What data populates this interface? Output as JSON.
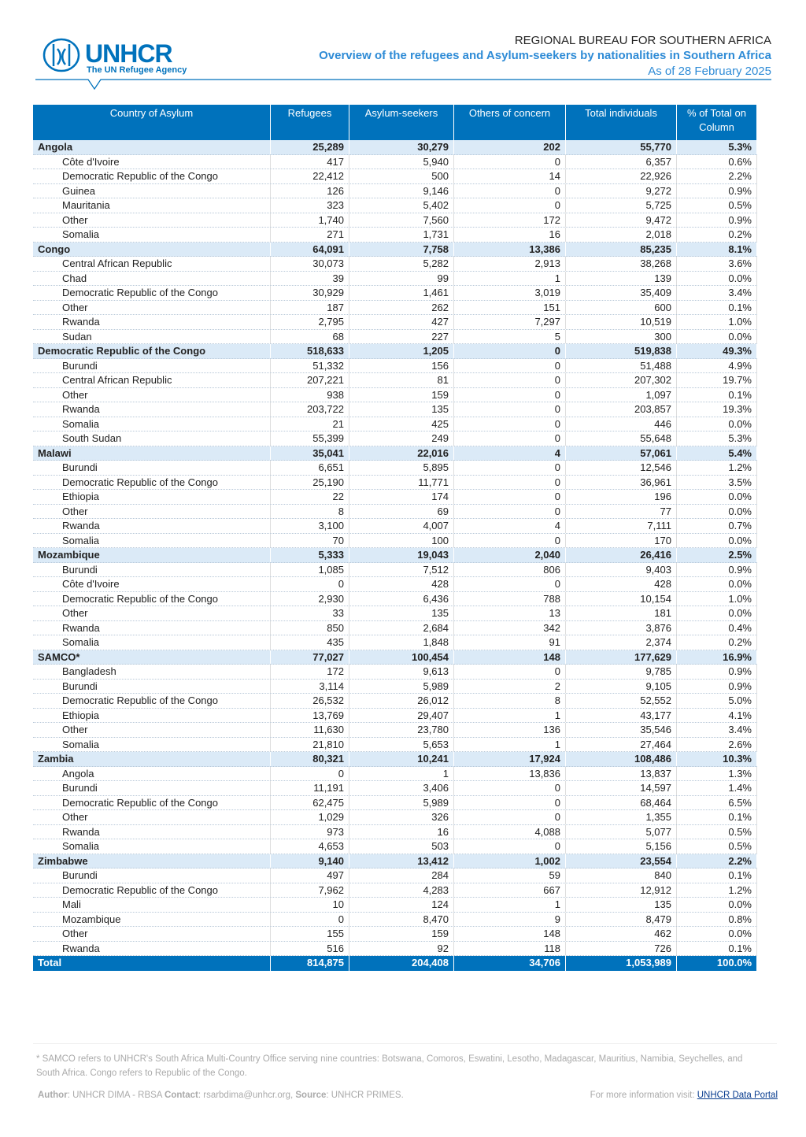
{
  "header": {
    "logo_text": "UNHCR",
    "logo_tagline": "The UN Refugee Agency",
    "bureau": "REGIONAL BUREAU FOR SOUTHERN AFRICA",
    "title": "Overview of the refugees and Asylum-seekers by nationalities in Southern Africa",
    "date": "As of 28 February 2025"
  },
  "table": {
    "columns": [
      "Country of Asylum",
      "Refugees",
      "Asylum-seekers",
      "Others of concern",
      "Total individuals",
      "% of Total on Column"
    ],
    "groups": [
      {
        "row": [
          "Angola",
          "25,289",
          "30,279",
          "202",
          "55,770",
          "5.3%"
        ],
        "rows": [
          [
            "Côte d'Ivoire",
            "417",
            "5,940",
            "0",
            "6,357",
            "0.6%"
          ],
          [
            "Democratic Republic of the Congo",
            "22,412",
            "500",
            "14",
            "22,926",
            "2.2%"
          ],
          [
            "Guinea",
            "126",
            "9,146",
            "0",
            "9,272",
            "0.9%"
          ],
          [
            "Mauritania",
            "323",
            "5,402",
            "0",
            "5,725",
            "0.5%"
          ],
          [
            "Other",
            "1,740",
            "7,560",
            "172",
            "9,472",
            "0.9%"
          ],
          [
            "Somalia",
            "271",
            "1,731",
            "16",
            "2,018",
            "0.2%"
          ]
        ]
      },
      {
        "row": [
          "Congo",
          "64,091",
          "7,758",
          "13,386",
          "85,235",
          "8.1%"
        ],
        "rows": [
          [
            "Central African Republic",
            "30,073",
            "5,282",
            "2,913",
            "38,268",
            "3.6%"
          ],
          [
            "Chad",
            "39",
            "99",
            "1",
            "139",
            "0.0%"
          ],
          [
            "Democratic Republic of the Congo",
            "30,929",
            "1,461",
            "3,019",
            "35,409",
            "3.4%"
          ],
          [
            "Other",
            "187",
            "262",
            "151",
            "600",
            "0.1%"
          ],
          [
            "Rwanda",
            "2,795",
            "427",
            "7,297",
            "10,519",
            "1.0%"
          ],
          [
            "Sudan",
            "68",
            "227",
            "5",
            "300",
            "0.0%"
          ]
        ]
      },
      {
        "row": [
          "Democratic Republic of the Congo",
          "518,633",
          "1,205",
          "0",
          "519,838",
          "49.3%"
        ],
        "rows": [
          [
            "Burundi",
            "51,332",
            "156",
            "0",
            "51,488",
            "4.9%"
          ],
          [
            "Central African Republic",
            "207,221",
            "81",
            "0",
            "207,302",
            "19.7%"
          ],
          [
            "Other",
            "938",
            "159",
            "0",
            "1,097",
            "0.1%"
          ],
          [
            "Rwanda",
            "203,722",
            "135",
            "0",
            "203,857",
            "19.3%"
          ],
          [
            "Somalia",
            "21",
            "425",
            "0",
            "446",
            "0.0%"
          ],
          [
            "South Sudan",
            "55,399",
            "249",
            "0",
            "55,648",
            "5.3%"
          ]
        ]
      },
      {
        "row": [
          "Malawi",
          "35,041",
          "22,016",
          "4",
          "57,061",
          "5.4%"
        ],
        "rows": [
          [
            "Burundi",
            "6,651",
            "5,895",
            "0",
            "12,546",
            "1.2%"
          ],
          [
            "Democratic Republic of the Congo",
            "25,190",
            "11,771",
            "0",
            "36,961",
            "3.5%"
          ],
          [
            "Ethiopia",
            "22",
            "174",
            "0",
            "196",
            "0.0%"
          ],
          [
            "Other",
            "8",
            "69",
            "0",
            "77",
            "0.0%"
          ],
          [
            "Rwanda",
            "3,100",
            "4,007",
            "4",
            "7,111",
            "0.7%"
          ],
          [
            "Somalia",
            "70",
            "100",
            "0",
            "170",
            "0.0%"
          ]
        ]
      },
      {
        "row": [
          "Mozambique",
          "5,333",
          "19,043",
          "2,040",
          "26,416",
          "2.5%"
        ],
        "rows": [
          [
            "Burundi",
            "1,085",
            "7,512",
            "806",
            "9,403",
            "0.9%"
          ],
          [
            "Côte d'Ivoire",
            "0",
            "428",
            "0",
            "428",
            "0.0%"
          ],
          [
            "Democratic Republic of the Congo",
            "2,930",
            "6,436",
            "788",
            "10,154",
            "1.0%"
          ],
          [
            "Other",
            "33",
            "135",
            "13",
            "181",
            "0.0%"
          ],
          [
            "Rwanda",
            "850",
            "2,684",
            "342",
            "3,876",
            "0.4%"
          ],
          [
            "Somalia",
            "435",
            "1,848",
            "91",
            "2,374",
            "0.2%"
          ]
        ]
      },
      {
        "row": [
          "SAMCO*",
          "77,027",
          "100,454",
          "148",
          "177,629",
          "16.9%"
        ],
        "rows": [
          [
            "Bangladesh",
            "172",
            "9,613",
            "0",
            "9,785",
            "0.9%"
          ],
          [
            "Burundi",
            "3,114",
            "5,989",
            "2",
            "9,105",
            "0.9%"
          ],
          [
            "Democratic Republic of the Congo",
            "26,532",
            "26,012",
            "8",
            "52,552",
            "5.0%"
          ],
          [
            "Ethiopia",
            "13,769",
            "29,407",
            "1",
            "43,177",
            "4.1%"
          ],
          [
            "Other",
            "11,630",
            "23,780",
            "136",
            "35,546",
            "3.4%"
          ],
          [
            "Somalia",
            "21,810",
            "5,653",
            "1",
            "27,464",
            "2.6%"
          ]
        ]
      },
      {
        "row": [
          "Zambia",
          "80,321",
          "10,241",
          "17,924",
          "108,486",
          "10.3%"
        ],
        "rows": [
          [
            "Angola",
            "0",
            "1",
            "13,836",
            "13,837",
            "1.3%"
          ],
          [
            "Burundi",
            "11,191",
            "3,406",
            "0",
            "14,597",
            "1.4%"
          ],
          [
            "Democratic Republic of the Congo",
            "62,475",
            "5,989",
            "0",
            "68,464",
            "6.5%"
          ],
          [
            "Other",
            "1,029",
            "326",
            "0",
            "1,355",
            "0.1%"
          ],
          [
            "Rwanda",
            "973",
            "16",
            "4,088",
            "5,077",
            "0.5%"
          ],
          [
            "Somalia",
            "4,653",
            "503",
            "0",
            "5,156",
            "0.5%"
          ]
        ]
      },
      {
        "row": [
          "Zimbabwe",
          "9,140",
          "13,412",
          "1,002",
          "23,554",
          "2.2%"
        ],
        "rows": [
          [
            "Burundi",
            "497",
            "284",
            "59",
            "840",
            "0.1%"
          ],
          [
            "Democratic Republic of the Congo",
            "7,962",
            "4,283",
            "667",
            "12,912",
            "1.2%"
          ],
          [
            "Mali",
            "10",
            "124",
            "1",
            "135",
            "0.0%"
          ],
          [
            "Mozambique",
            "0",
            "8,470",
            "9",
            "8,479",
            "0.8%"
          ],
          [
            "Other",
            "155",
            "159",
            "148",
            "462",
            "0.0%"
          ],
          [
            "Rwanda",
            "516",
            "92",
            "118",
            "726",
            "0.1%"
          ]
        ]
      }
    ],
    "total": [
      "Total",
      "814,875",
      "204,408",
      "34,706",
      "1,053,989",
      "100.0%"
    ]
  },
  "footer": {
    "note": "* SAMCO refers to UNHCR's South Africa Multi-Country Office serving nine countries: Botswana, Comoros, Eswatini, Lesotho, Madagascar, Mauritius, Namibia, Seychelles, and South Africa. Congo refers to Republic of the Congo.",
    "author_label": "Author",
    "author": ": UNHCR DIMA - RBSA",
    "contact_label": "Contact",
    "contact": ": rsarbdima@unhcr.org,",
    "source_label": "Source",
    "source": ": UNHCR PRIMES.",
    "more_info": "For more information visit:",
    "portal": "UNHCR Data Portal"
  }
}
